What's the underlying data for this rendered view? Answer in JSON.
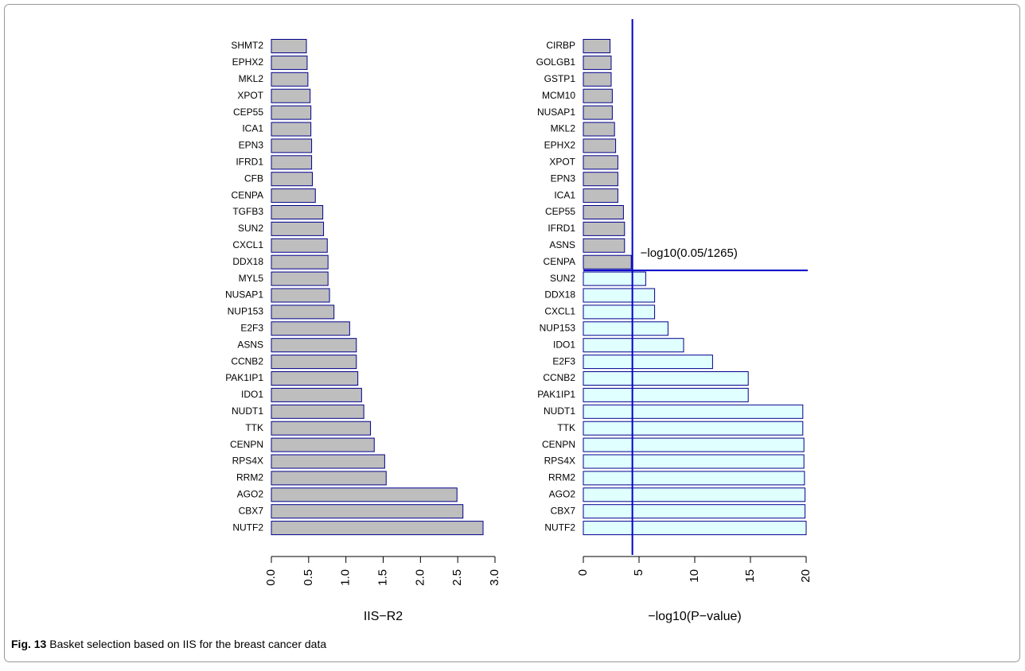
{
  "chart_data": [
    {
      "type": "bar",
      "orientation": "horizontal",
      "xlabel": "IIS−R2",
      "categories": [
        "SHMT2",
        "EPHX2",
        "MKL2",
        "XPOT",
        "CEP55",
        "ICA1",
        "EPN3",
        "IFRD1",
        "CFB",
        "CENPA",
        "TGFB3",
        "SUN2",
        "CXCL1",
        "DDX18",
        "MYL5",
        "NUSAP1",
        "NUP153",
        "E2F3",
        "ASNS",
        "CCNB2",
        "PAK1IP1",
        "IDO1",
        "NUDT1",
        "TTK",
        "CENPN",
        "RPS4X",
        "RRM2",
        "AGO2",
        "CBX7",
        "NUTF2"
      ],
      "values": [
        0.47,
        0.48,
        0.49,
        0.52,
        0.53,
        0.53,
        0.54,
        0.54,
        0.55,
        0.59,
        0.69,
        0.7,
        0.75,
        0.76,
        0.76,
        0.78,
        0.84,
        1.05,
        1.14,
        1.14,
        1.16,
        1.21,
        1.24,
        1.33,
        1.38,
        1.52,
        1.54,
        2.49,
        2.57,
        2.84
      ],
      "color": "#bebebe",
      "edgecolor": "#00008b",
      "xlim": [
        0,
        3
      ],
      "xticks": [
        {
          "value": 0,
          "label": "0.0"
        },
        0.5,
        {
          "value": 1,
          "label": "1.0"
        },
        1.5,
        {
          "value": 2,
          "label": "2.0"
        },
        2.5,
        {
          "value": 3,
          "label": "3.0"
        }
      ]
    },
    {
      "type": "bar",
      "orientation": "horizontal",
      "xlabel": "−log10(P−value)",
      "categories": [
        "CIRBP",
        "GOLGB1",
        "GSTP1",
        "MCM10",
        "NUSAP1",
        "MKL2",
        "EPHX2",
        "XPOT",
        "EPN3",
        "ICA1",
        "CEP55",
        "IFRD1",
        "ASNS",
        "CENPA",
        "SUN2",
        "DDX18",
        "CXCL1",
        "NUP153",
        "IDO1",
        "E2F3",
        "CCNB2",
        "PAK1IP1",
        "NUDT1",
        "TTK",
        "CENPN",
        "RPS4X",
        "RRM2",
        "AGO2",
        "CBX7",
        "NUTF2"
      ],
      "values": [
        2.4,
        2.5,
        2.5,
        2.6,
        2.6,
        2.8,
        2.9,
        3.1,
        3.1,
        3.1,
        3.6,
        3.7,
        3.7,
        4.3,
        5.6,
        6.4,
        6.4,
        7.6,
        9.0,
        11.6,
        14.8,
        14.8,
        19.7,
        19.7,
        19.8,
        19.8,
        19.85,
        19.9,
        19.9,
        20.0
      ],
      "color": "#bebebe",
      "color_above": "#e0ffff",
      "edgecolor": "#00008b",
      "threshold": {
        "value": 4.403,
        "label": "−log10(0.05/1265)",
        "color": "#0000cc"
      },
      "xlim": [
        0,
        20
      ],
      "xticks": [
        0,
        5,
        10,
        15,
        20
      ]
    }
  ],
  "caption": {
    "label": "Fig. 13",
    "text": "Basket selection based on IIS for the breast cancer data"
  }
}
